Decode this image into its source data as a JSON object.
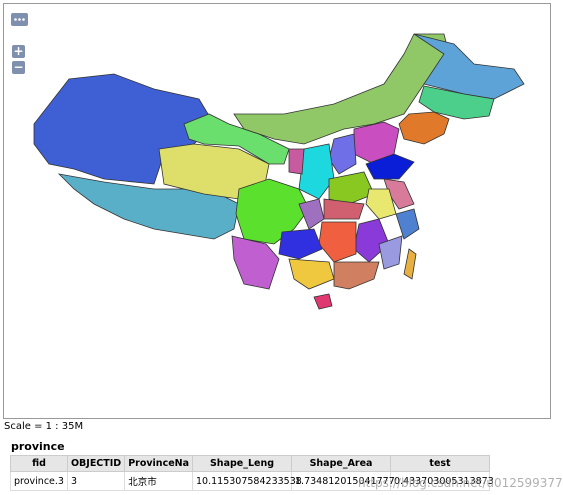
{
  "controls": {
    "zoom_in": "+",
    "zoom_out": "−"
  },
  "scale": "Scale = 1 : 35M",
  "layer_title": "province",
  "table": {
    "columns": [
      "fid",
      "OBJECTID",
      "ProvinceNa",
      "Shape_Leng",
      "Shape_Area",
      "test"
    ],
    "rows": [
      [
        "province.3",
        "3",
        "北京市",
        "10.115307584233538",
        "1.734812015041777",
        "0.433703005313873"
      ]
    ]
  },
  "watermark": "https://blog.csdn.net/u012599377"
}
